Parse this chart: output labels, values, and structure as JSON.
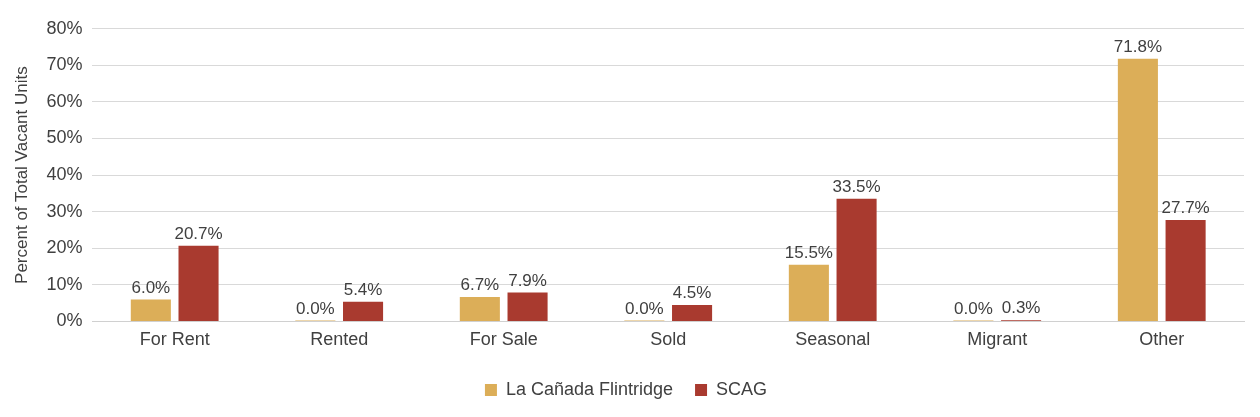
{
  "chart_data": {
    "type": "bar",
    "ylabel": "Percent of Total Vacant Units",
    "categories": [
      "For Rent",
      "Rented",
      "For Sale",
      "Sold",
      "Seasonal",
      "Migrant",
      "Other"
    ],
    "series": [
      {
        "name": "La Cañada Flintridge",
        "color": "#dcae58",
        "values": [
          6.0,
          0.0,
          6.7,
          0.0,
          15.5,
          0.0,
          71.8
        ],
        "value_labels": [
          "6.0%",
          "0.0%",
          "6.7%",
          "0.0%",
          "15.5%",
          "0.0%",
          "71.8%"
        ]
      },
      {
        "name": "SCAG",
        "color": "#a93a2f",
        "values": [
          20.7,
          5.4,
          7.9,
          4.5,
          33.5,
          0.3,
          27.7
        ],
        "value_labels": [
          "20.7%",
          "5.4%",
          "7.9%",
          "4.5%",
          "33.5%",
          "0.3%",
          "27.7%"
        ]
      }
    ],
    "ylim": [
      0,
      80
    ],
    "yticks": [
      {
        "value": 0,
        "label": "0%"
      },
      {
        "value": 10,
        "label": "10%"
      },
      {
        "value": 20,
        "label": "20%"
      },
      {
        "value": 30,
        "label": "30%"
      },
      {
        "value": 40,
        "label": "40%"
      },
      {
        "value": 50,
        "label": "50%"
      },
      {
        "value": 60,
        "label": "60%"
      },
      {
        "value": 70,
        "label": "70%"
      },
      {
        "value": 80,
        "label": "80%"
      }
    ],
    "grid": "y",
    "legend": "bottom"
  }
}
